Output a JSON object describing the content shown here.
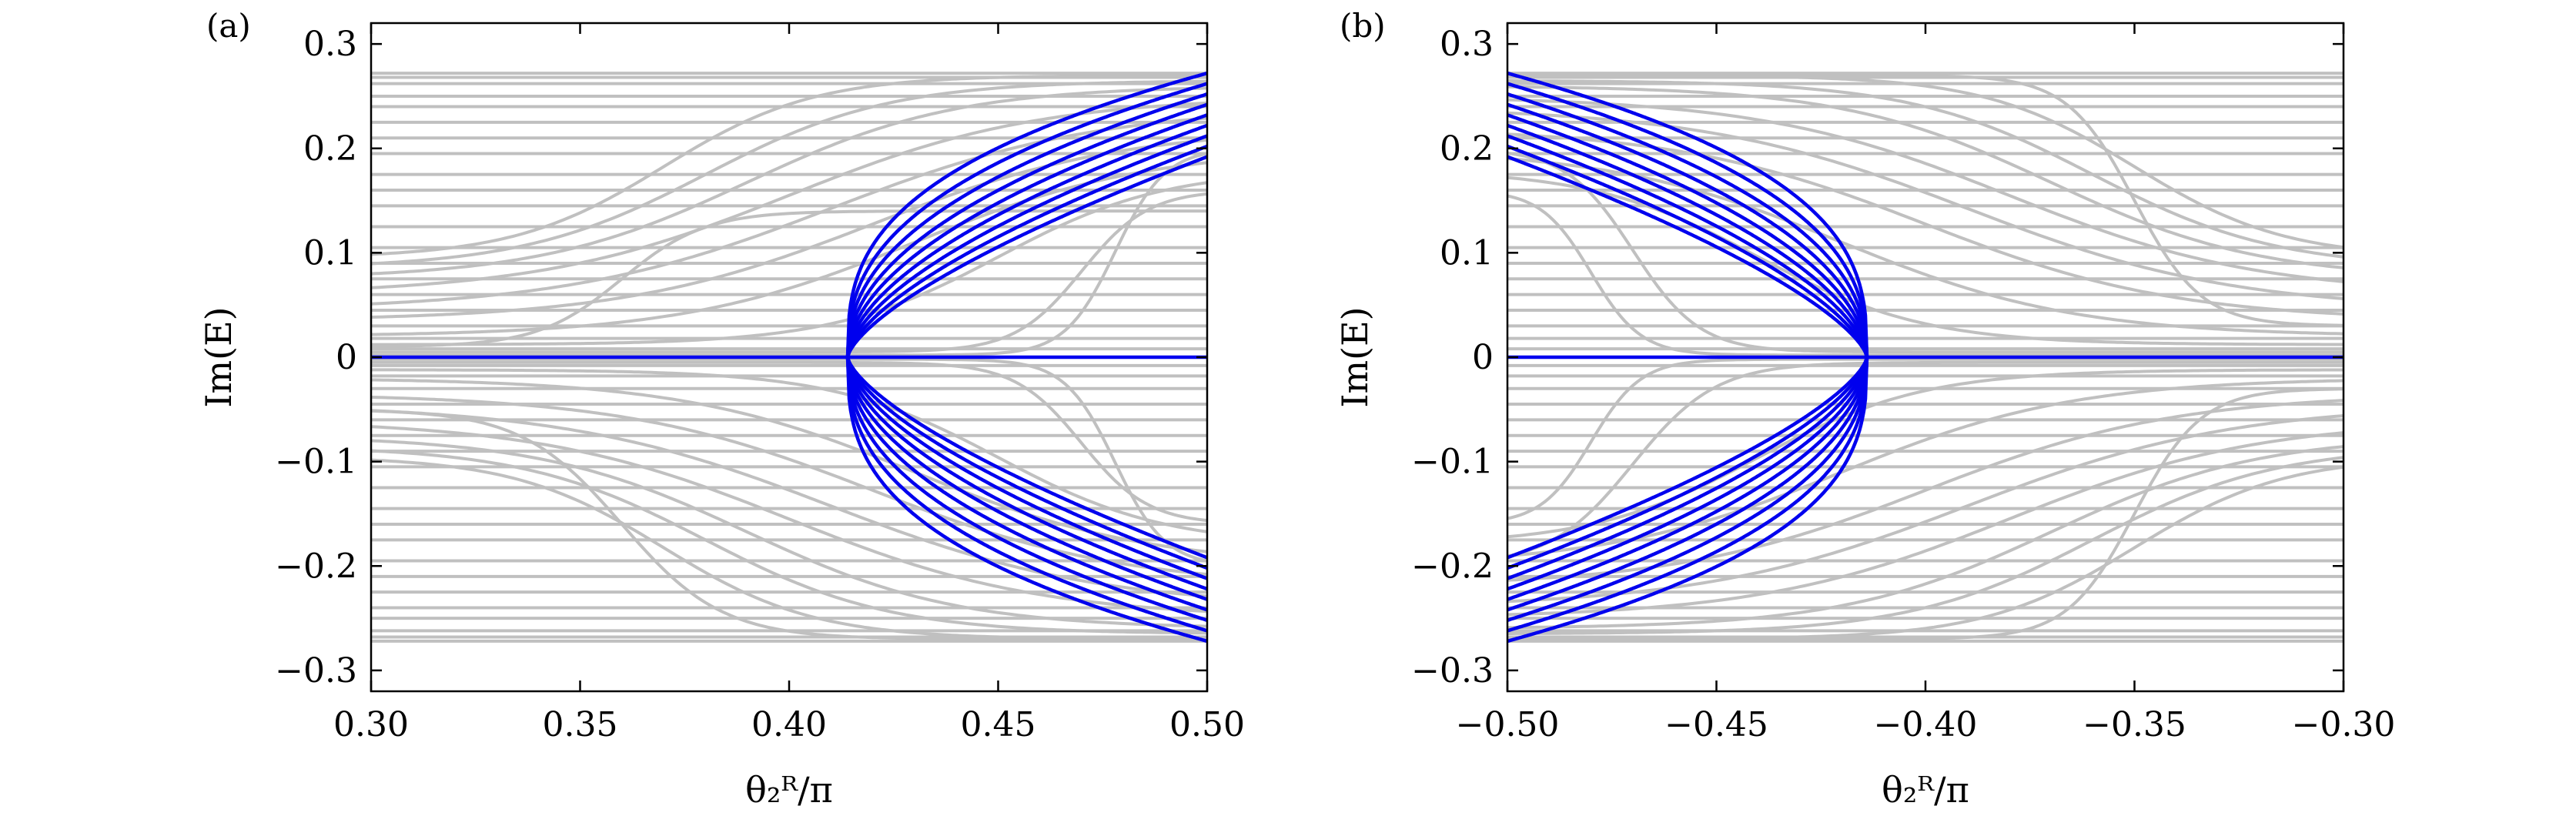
{
  "colors": {
    "bulk": "#c0c0c0",
    "edge": "#0000ee",
    "axes": "#000000"
  },
  "chart_data": [
    {
      "type": "line",
      "panel_label": "(a)",
      "xlabel": "θ₂ᴿ/π",
      "ylabel": "Im(E)",
      "xlim": [
        0.3,
        0.5
      ],
      "ylim": [
        -0.32,
        0.32
      ],
      "xticks": [
        "0.30",
        "0.35",
        "0.40",
        "0.45",
        "0.50"
      ],
      "xtick_values": [
        0.3,
        0.35,
        0.4,
        0.45,
        0.5
      ],
      "yticks": [
        "0.3",
        "0.2",
        "0.1",
        "0",
        "−0.1",
        "−0.2",
        "−0.3"
      ],
      "ytick_values": [
        0.3,
        0.2,
        0.1,
        0,
        -0.1,
        -0.2,
        -0.3
      ],
      "grid": false,
      "exceptional_point_x": 0.414,
      "edge_bundle": {
        "x_start": 0.414,
        "x_end": 0.5,
        "end_values": [
          0.272,
          0.262,
          0.252,
          0.242,
          0.232,
          0.222,
          0.212,
          0.202,
          0.192,
          -0.192,
          -0.202,
          -0.212,
          -0.222,
          -0.232,
          -0.242,
          -0.252,
          -0.262,
          -0.272
        ]
      },
      "bulk_flat_levels": [
        0.272,
        0.268,
        0.262,
        0.25,
        0.24,
        0.225,
        0.21,
        0.195,
        0.175,
        0.16,
        0.145,
        0.125,
        0.105,
        0.09,
        0.075,
        0.06,
        0.045,
        0.03,
        0.018,
        0.008,
        -0.008,
        -0.018,
        -0.03,
        -0.045,
        -0.06,
        -0.075,
        -0.09,
        -0.105,
        -0.125,
        -0.145,
        -0.16,
        -0.175,
        -0.195,
        -0.21,
        -0.225,
        -0.24,
        -0.25,
        -0.262,
        -0.268,
        -0.272
      ],
      "bulk_sigmoids": [
        {
          "from": 0.095,
          "to": 0.27,
          "center": 0.37,
          "width": 0.018
        },
        {
          "from": 0.085,
          "to": 0.265,
          "center": 0.38,
          "width": 0.022
        },
        {
          "from": 0.075,
          "to": 0.26,
          "center": 0.39,
          "width": 0.025
        },
        {
          "from": 0.06,
          "to": 0.25,
          "center": 0.4,
          "width": 0.03
        },
        {
          "from": 0.045,
          "to": 0.24,
          "center": 0.41,
          "width": 0.032
        },
        {
          "from": 0.035,
          "to": 0.22,
          "center": 0.42,
          "width": 0.03
        },
        {
          "from": 0.02,
          "to": 0.2,
          "center": 0.43,
          "width": 0.028
        },
        {
          "from": 0.012,
          "to": 0.18,
          "center": 0.45,
          "width": 0.02
        },
        {
          "from": 0.005,
          "to": 0.16,
          "center": 0.47,
          "width": 0.008
        },
        {
          "from": 0.002,
          "to": 0.2,
          "center": 0.478,
          "width": 0.006
        },
        {
          "from": 0.01,
          "to": 0.14,
          "center": 0.36,
          "width": 0.01
        },
        {
          "from": -0.095,
          "to": -0.27,
          "center": 0.37,
          "width": 0.018
        },
        {
          "from": -0.085,
          "to": -0.265,
          "center": 0.38,
          "width": 0.022
        },
        {
          "from": -0.075,
          "to": -0.26,
          "center": 0.39,
          "width": 0.025
        },
        {
          "from": -0.06,
          "to": -0.25,
          "center": 0.4,
          "width": 0.03
        },
        {
          "from": -0.045,
          "to": -0.24,
          "center": 0.41,
          "width": 0.032
        },
        {
          "from": -0.035,
          "to": -0.22,
          "center": 0.42,
          "width": 0.03
        },
        {
          "from": -0.02,
          "to": -0.2,
          "center": 0.43,
          "width": 0.028
        },
        {
          "from": -0.012,
          "to": -0.18,
          "center": 0.45,
          "width": 0.02
        },
        {
          "from": -0.005,
          "to": -0.16,
          "center": 0.47,
          "width": 0.008
        },
        {
          "from": -0.002,
          "to": -0.2,
          "center": 0.478,
          "width": 0.006
        },
        {
          "from": -0.05,
          "to": -0.27,
          "center": 0.36,
          "width": 0.012
        }
      ]
    },
    {
      "type": "line",
      "panel_label": "(b)",
      "xlabel": "θ₂ᴿ/π",
      "ylabel": "Im(E)",
      "xlim": [
        -0.5,
        -0.3
      ],
      "ylim": [
        -0.32,
        0.32
      ],
      "xticks": [
        "−0.50",
        "−0.45",
        "−0.40",
        "−0.35",
        "−0.30"
      ],
      "xtick_values": [
        -0.5,
        -0.45,
        -0.4,
        -0.35,
        -0.3
      ],
      "yticks": [
        "0.3",
        "0.2",
        "0.1",
        "0",
        "−0.1",
        "−0.2",
        "−0.3"
      ],
      "ytick_values": [
        0.3,
        0.2,
        0.1,
        0,
        -0.1,
        -0.2,
        -0.3
      ],
      "grid": false,
      "exceptional_point_x": -0.414,
      "edge_bundle": {
        "x_start": -0.5,
        "x_end": -0.414,
        "end_values": [
          0.272,
          0.262,
          0.252,
          0.242,
          0.232,
          0.222,
          0.212,
          0.202,
          0.192,
          -0.192,
          -0.202,
          -0.212,
          -0.222,
          -0.232,
          -0.242,
          -0.252,
          -0.262,
          -0.272
        ]
      },
      "bulk_flat_levels": [
        0.272,
        0.268,
        0.262,
        0.25,
        0.24,
        0.225,
        0.21,
        0.195,
        0.175,
        0.16,
        0.145,
        0.125,
        0.105,
        0.09,
        0.075,
        0.06,
        0.045,
        0.03,
        0.018,
        0.008,
        -0.008,
        -0.018,
        -0.03,
        -0.045,
        -0.06,
        -0.075,
        -0.09,
        -0.105,
        -0.125,
        -0.145,
        -0.16,
        -0.175,
        -0.195,
        -0.21,
        -0.225,
        -0.24,
        -0.25,
        -0.262,
        -0.268,
        -0.272
      ],
      "bulk_sigmoids": [
        {
          "from": 0.27,
          "to": 0.095,
          "center": -0.35,
          "width": 0.018
        },
        {
          "from": 0.265,
          "to": 0.085,
          "center": -0.36,
          "width": 0.022
        },
        {
          "from": 0.26,
          "to": 0.075,
          "center": -0.37,
          "width": 0.025
        },
        {
          "from": 0.25,
          "to": 0.06,
          "center": -0.38,
          "width": 0.03
        },
        {
          "from": 0.24,
          "to": 0.045,
          "center": -0.39,
          "width": 0.032
        },
        {
          "from": 0.22,
          "to": 0.035,
          "center": -0.4,
          "width": 0.03
        },
        {
          "from": 0.2,
          "to": 0.02,
          "center": -0.42,
          "width": 0.028
        },
        {
          "from": 0.18,
          "to": 0.012,
          "center": -0.44,
          "width": 0.02
        },
        {
          "from": 0.2,
          "to": 0.005,
          "center": -0.47,
          "width": 0.008
        },
        {
          "from": 0.16,
          "to": 0.002,
          "center": -0.48,
          "width": 0.006
        },
        {
          "from": 0.27,
          "to": 0.03,
          "center": -0.35,
          "width": 0.008
        },
        {
          "from": -0.27,
          "to": -0.095,
          "center": -0.35,
          "width": 0.018
        },
        {
          "from": -0.265,
          "to": -0.085,
          "center": -0.36,
          "width": 0.022
        },
        {
          "from": -0.26,
          "to": -0.075,
          "center": -0.37,
          "width": 0.025
        },
        {
          "from": -0.25,
          "to": -0.06,
          "center": -0.38,
          "width": 0.03
        },
        {
          "from": -0.24,
          "to": -0.045,
          "center": -0.39,
          "width": 0.032
        },
        {
          "from": -0.22,
          "to": -0.035,
          "center": -0.4,
          "width": 0.03
        },
        {
          "from": -0.2,
          "to": -0.02,
          "center": -0.42,
          "width": 0.028
        },
        {
          "from": -0.18,
          "to": -0.012,
          "center": -0.44,
          "width": 0.02
        },
        {
          "from": -0.2,
          "to": -0.005,
          "center": -0.47,
          "width": 0.01
        },
        {
          "from": -0.16,
          "to": -0.002,
          "center": -0.48,
          "width": 0.006
        },
        {
          "from": -0.27,
          "to": -0.03,
          "center": -0.35,
          "width": 0.008
        }
      ]
    }
  ]
}
